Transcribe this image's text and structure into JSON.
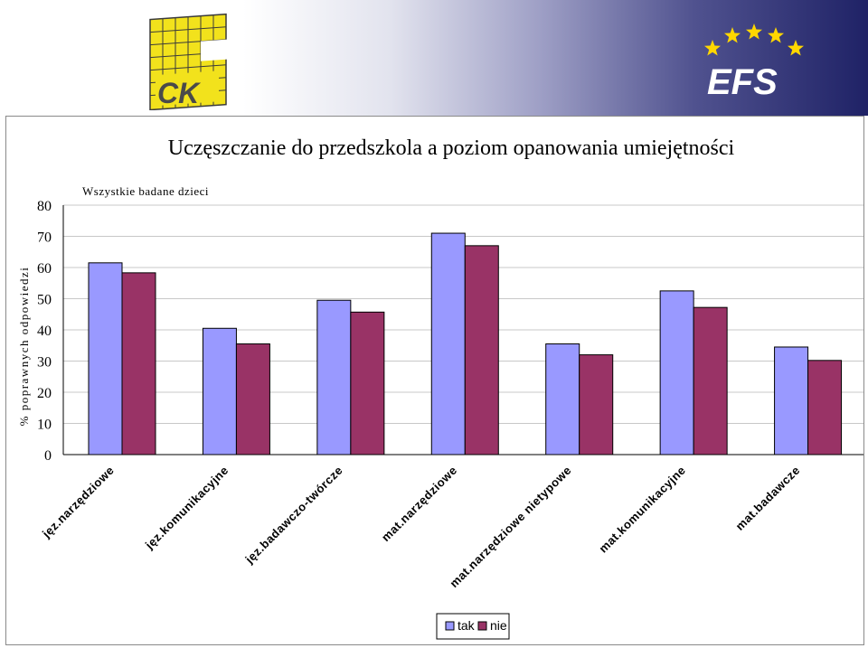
{
  "logos": {
    "left": {
      "text": "CK",
      "icon": "ck-logo-icon"
    },
    "right": {
      "text": "EFS",
      "icon": "efs-logo-icon",
      "colors": {
        "stars": "#ffd700",
        "letters": "#ffffff",
        "band": "#1f2266"
      }
    }
  },
  "chart_data": {
    "type": "bar",
    "title": "Uczęszczanie do przedszkola a poziom opanowania umiejętności",
    "subtitle": "Wszystkie badane dzieci",
    "ylabel": "% poprawnych odpowiedzi",
    "xlabel": "",
    "ylim": [
      0,
      80
    ],
    "yticks": [
      "0",
      "10",
      "20",
      "30",
      "40",
      "50",
      "60",
      "70",
      "80"
    ],
    "categories": [
      "jęz.narzędziowe",
      "jęz.komunikacyjne",
      "jęz.badawczo-twórcze",
      "mat.narzędziowe",
      "mat.narzędziowe nietypowe",
      "mat.komunikacyjne",
      "mat.badawcze"
    ],
    "series": [
      {
        "name": "tak",
        "color": "#9999ff",
        "values": [
          61.5,
          40.5,
          49.5,
          71,
          35.5,
          52.5,
          34.5
        ]
      },
      {
        "name": "nie",
        "color": "#993366",
        "values": [
          58.3,
          35.5,
          45.7,
          67,
          32,
          47.2,
          30.2
        ]
      }
    ],
    "grid": true,
    "legend": "bottom-center"
  }
}
